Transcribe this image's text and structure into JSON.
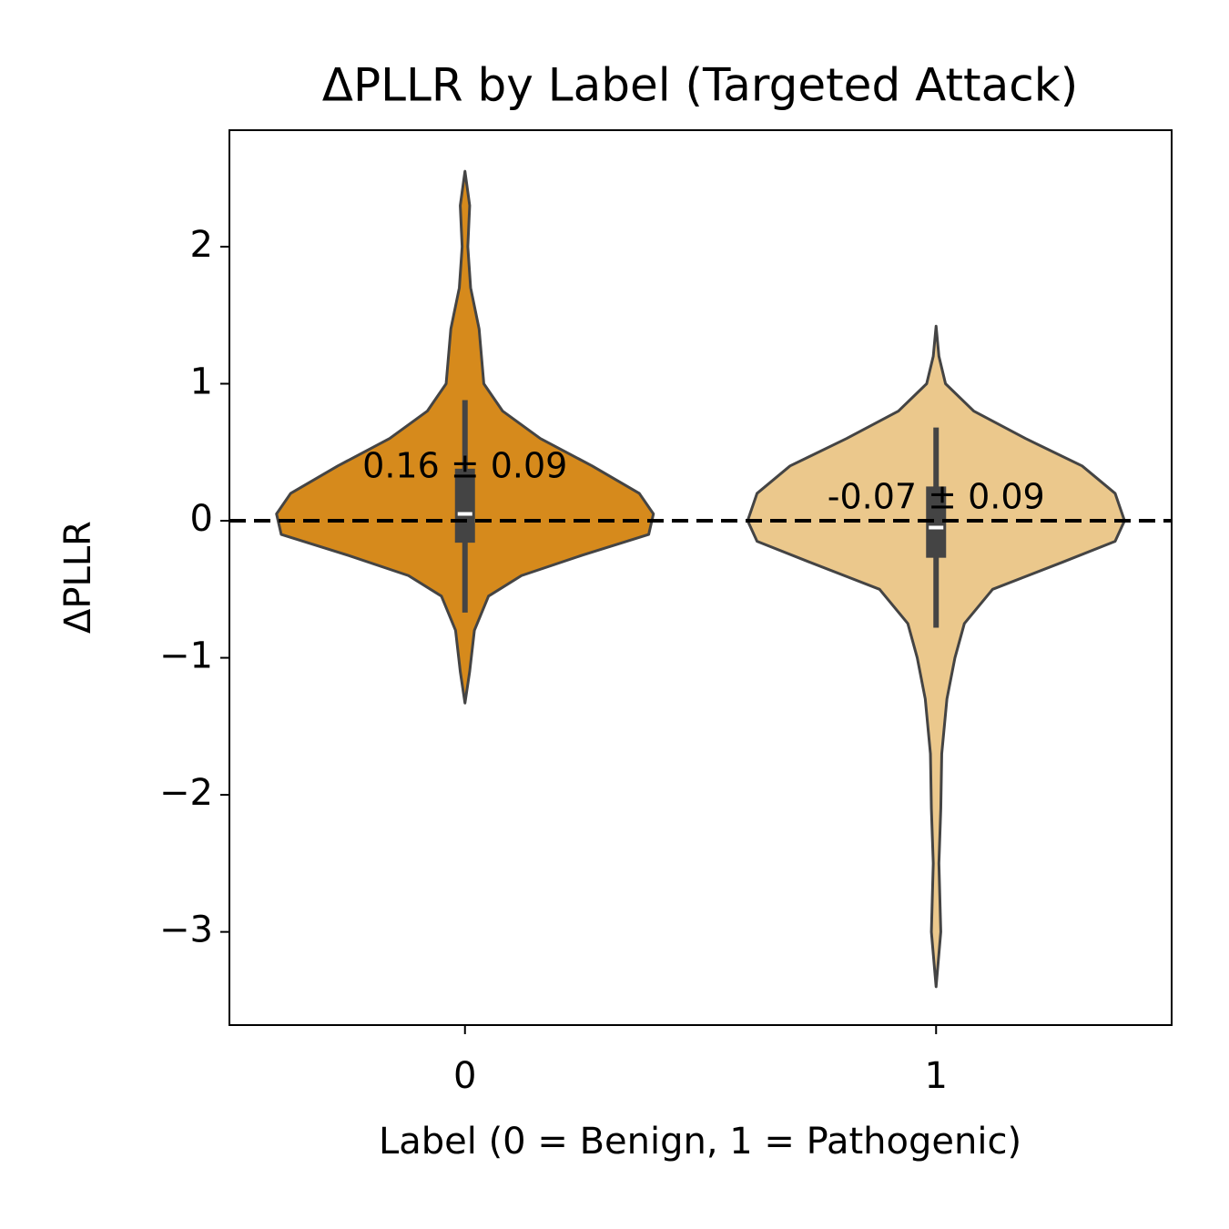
{
  "chart_data": {
    "type": "violin",
    "title": "ΔPLLR by Label (Targeted Attack)",
    "x_label": "Label (0 = Benign, 1 = Pathogenic)",
    "y_label": "ΔPLLR",
    "categories": [
      "0",
      "1"
    ],
    "xlim": [
      -0.5,
      1.5
    ],
    "ylim": [
      -3.68,
      2.85
    ],
    "yticks": [
      {
        "value": -3,
        "label": "−3"
      },
      {
        "value": -2,
        "label": "−2"
      },
      {
        "value": -1,
        "label": "−1"
      },
      0,
      1,
      2
    ],
    "hline": 0,
    "outline_color": "#444444",
    "violins": [
      {
        "color": "#d68a1c",
        "density_y": [
          2.55,
          2.3,
          2.0,
          1.7,
          1.4,
          1.2,
          1.0,
          0.8,
          0.6,
          0.4,
          0.2,
          0.05,
          -0.1,
          -0.25,
          -0.4,
          -0.55,
          -0.8,
          -1.1,
          -1.33
        ],
        "density_width": [
          0,
          0.01,
          0.006,
          0.012,
          0.03,
          0.035,
          0.04,
          0.08,
          0.16,
          0.27,
          0.37,
          0.4,
          0.39,
          0.25,
          0.12,
          0.05,
          0.02,
          0.01,
          0
        ],
        "whisker": [
          -0.67,
          0.88
        ],
        "q1": -0.16,
        "median": 0.05,
        "q3": 0.38,
        "annotation": "0.16 ± 0.09"
      },
      {
        "color": "#ebc88c",
        "density_y": [
          1.42,
          1.2,
          1.0,
          0.8,
          0.6,
          0.4,
          0.2,
          0.0,
          -0.15,
          -0.3,
          -0.5,
          -0.75,
          -1.0,
          -1.3,
          -1.7,
          -2.1,
          -2.5,
          -3.0,
          -3.4
        ],
        "density_width": [
          0,
          0.006,
          0.02,
          0.08,
          0.19,
          0.31,
          0.38,
          0.4,
          0.38,
          0.27,
          0.12,
          0.06,
          0.04,
          0.023,
          0.012,
          0.01,
          0.006,
          0.01,
          0
        ],
        "whisker": [
          -0.78,
          0.68
        ],
        "q1": -0.27,
        "median": -0.05,
        "q3": 0.25,
        "annotation": "-0.07 ± 0.09"
      }
    ]
  }
}
